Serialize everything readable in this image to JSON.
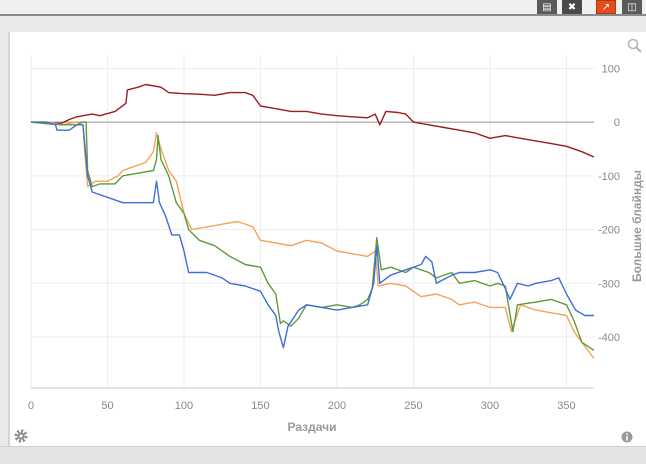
{
  "toolbar": {
    "buttons": [
      {
        "icon": "save-icon"
      },
      {
        "icon": "close-icon"
      },
      {
        "icon": "chart-icon",
        "active": true
      },
      {
        "icon": "panel-icon"
      }
    ]
  },
  "colors": {
    "red": "#9b1b1e",
    "orange": "#f3a35a",
    "green": "#5f9a3b",
    "blue": "#3f6fd6",
    "zero_line": "#aaaaaa",
    "grid": "#eeeeee",
    "active_button": "#e04e1a"
  },
  "chart_data": {
    "type": "line",
    "title": "",
    "xlabel": "Раздачи",
    "ylabel": "Большие блайнды",
    "xlim": [
      0,
      368
    ],
    "ylim": [
      -495,
      125
    ],
    "x_ticks": [
      0,
      50,
      100,
      150,
      200,
      250,
      300,
      350
    ],
    "y_ticks": [
      100,
      0,
      -100,
      -200,
      -300,
      -400
    ],
    "grid": true,
    "series": [
      {
        "key": "red",
        "points": [
          [
            0,
            0
          ],
          [
            10,
            -2
          ],
          [
            20,
            -2
          ],
          [
            25,
            5
          ],
          [
            30,
            10
          ],
          [
            40,
            15
          ],
          [
            45,
            12
          ],
          [
            55,
            20
          ],
          [
            62,
            35
          ],
          [
            63,
            60
          ],
          [
            70,
            65
          ],
          [
            75,
            70
          ],
          [
            85,
            65
          ],
          [
            90,
            55
          ],
          [
            100,
            53
          ],
          [
            110,
            52
          ],
          [
            120,
            50
          ],
          [
            130,
            55
          ],
          [
            140,
            55
          ],
          [
            145,
            50
          ],
          [
            150,
            30
          ],
          [
            160,
            25
          ],
          [
            170,
            20
          ],
          [
            180,
            20
          ],
          [
            190,
            15
          ],
          [
            200,
            12
          ],
          [
            210,
            10
          ],
          [
            220,
            8
          ],
          [
            225,
            15
          ],
          [
            228,
            -5
          ],
          [
            232,
            20
          ],
          [
            240,
            18
          ],
          [
            245,
            15
          ],
          [
            250,
            0
          ],
          [
            260,
            -5
          ],
          [
            270,
            -10
          ],
          [
            280,
            -15
          ],
          [
            290,
            -20
          ],
          [
            300,
            -30
          ],
          [
            310,
            -25
          ],
          [
            320,
            -30
          ],
          [
            330,
            -35
          ],
          [
            340,
            -40
          ],
          [
            350,
            -45
          ],
          [
            360,
            -55
          ],
          [
            368,
            -65
          ]
        ]
      },
      {
        "key": "orange",
        "points": [
          [
            0,
            0
          ],
          [
            10,
            0
          ],
          [
            20,
            -5
          ],
          [
            30,
            0
          ],
          [
            34,
            -5
          ],
          [
            35,
            -50
          ],
          [
            37,
            -120
          ],
          [
            42,
            -110
          ],
          [
            50,
            -110
          ],
          [
            57,
            -100
          ],
          [
            60,
            -90
          ],
          [
            65,
            -85
          ],
          [
            75,
            -75
          ],
          [
            80,
            -55
          ],
          [
            82,
            -20
          ],
          [
            85,
            -50
          ],
          [
            90,
            -90
          ],
          [
            95,
            -110
          ],
          [
            100,
            -170
          ],
          [
            105,
            -200
          ],
          [
            115,
            -195
          ],
          [
            125,
            -190
          ],
          [
            135,
            -185
          ],
          [
            145,
            -195
          ],
          [
            150,
            -220
          ],
          [
            160,
            -225
          ],
          [
            170,
            -230
          ],
          [
            180,
            -220
          ],
          [
            190,
            -225
          ],
          [
            200,
            -240
          ],
          [
            210,
            -245
          ],
          [
            220,
            -250
          ],
          [
            225,
            -240
          ],
          [
            227,
            -305
          ],
          [
            235,
            -300
          ],
          [
            245,
            -305
          ],
          [
            255,
            -325
          ],
          [
            265,
            -320
          ],
          [
            275,
            -330
          ],
          [
            280,
            -340
          ],
          [
            290,
            -335
          ],
          [
            300,
            -345
          ],
          [
            310,
            -345
          ],
          [
            314,
            -390
          ],
          [
            320,
            -340
          ],
          [
            330,
            -350
          ],
          [
            340,
            -355
          ],
          [
            350,
            -360
          ],
          [
            355,
            -390
          ],
          [
            360,
            -410
          ],
          [
            368,
            -440
          ]
        ]
      },
      {
        "key": "green",
        "points": [
          [
            0,
            0
          ],
          [
            10,
            -3
          ],
          [
            20,
            -5
          ],
          [
            30,
            -5
          ],
          [
            33,
            0
          ],
          [
            36,
            0
          ],
          [
            37,
            -90
          ],
          [
            40,
            -120
          ],
          [
            45,
            -115
          ],
          [
            55,
            -115
          ],
          [
            60,
            -100
          ],
          [
            70,
            -95
          ],
          [
            80,
            -90
          ],
          [
            82,
            -70
          ],
          [
            83,
            -25
          ],
          [
            85,
            -70
          ],
          [
            90,
            -100
          ],
          [
            95,
            -150
          ],
          [
            100,
            -170
          ],
          [
            103,
            -200
          ],
          [
            110,
            -220
          ],
          [
            120,
            -230
          ],
          [
            130,
            -250
          ],
          [
            140,
            -265
          ],
          [
            150,
            -270
          ],
          [
            155,
            -300
          ],
          [
            160,
            -320
          ],
          [
            163,
            -375
          ],
          [
            165,
            -370
          ],
          [
            170,
            -380
          ],
          [
            175,
            -365
          ],
          [
            180,
            -340
          ],
          [
            190,
            -345
          ],
          [
            200,
            -340
          ],
          [
            210,
            -345
          ],
          [
            215,
            -340
          ],
          [
            220,
            -330
          ],
          [
            223,
            -310
          ],
          [
            226,
            -215
          ],
          [
            229,
            -275
          ],
          [
            235,
            -270
          ],
          [
            245,
            -280
          ],
          [
            250,
            -270
          ],
          [
            260,
            -280
          ],
          [
            265,
            -290
          ],
          [
            275,
            -280
          ],
          [
            280,
            -300
          ],
          [
            290,
            -295
          ],
          [
            300,
            -305
          ],
          [
            305,
            -300
          ],
          [
            310,
            -305
          ],
          [
            315,
            -390
          ],
          [
            318,
            -340
          ],
          [
            330,
            -335
          ],
          [
            340,
            -330
          ],
          [
            350,
            -340
          ],
          [
            355,
            -370
          ],
          [
            360,
            -410
          ],
          [
            368,
            -425
          ]
        ]
      },
      {
        "key": "blue",
        "points": [
          [
            0,
            0
          ],
          [
            10,
            0
          ],
          [
            16,
            -5
          ],
          [
            17,
            -15
          ],
          [
            25,
            -15
          ],
          [
            30,
            -5
          ],
          [
            34,
            -5
          ],
          [
            37,
            -100
          ],
          [
            40,
            -130
          ],
          [
            50,
            -140
          ],
          [
            60,
            -150
          ],
          [
            70,
            -150
          ],
          [
            80,
            -150
          ],
          [
            82,
            -110
          ],
          [
            84,
            -150
          ],
          [
            88,
            -175
          ],
          [
            92,
            -210
          ],
          [
            97,
            -210
          ],
          [
            100,
            -240
          ],
          [
            103,
            -280
          ],
          [
            115,
            -280
          ],
          [
            125,
            -290
          ],
          [
            130,
            -300
          ],
          [
            140,
            -305
          ],
          [
            150,
            -315
          ],
          [
            155,
            -340
          ],
          [
            160,
            -360
          ],
          [
            162,
            -390
          ],
          [
            165,
            -420
          ],
          [
            168,
            -380
          ],
          [
            175,
            -350
          ],
          [
            180,
            -340
          ],
          [
            190,
            -345
          ],
          [
            200,
            -350
          ],
          [
            210,
            -345
          ],
          [
            220,
            -340
          ],
          [
            224,
            -300
          ],
          [
            226,
            -230
          ],
          [
            228,
            -300
          ],
          [
            235,
            -285
          ],
          [
            245,
            -275
          ],
          [
            255,
            -265
          ],
          [
            258,
            -250
          ],
          [
            262,
            -260
          ],
          [
            265,
            -300
          ],
          [
            275,
            -285
          ],
          [
            280,
            -280
          ],
          [
            290,
            -280
          ],
          [
            300,
            -275
          ],
          [
            305,
            -280
          ],
          [
            310,
            -310
          ],
          [
            313,
            -330
          ],
          [
            318,
            -300
          ],
          [
            325,
            -305
          ],
          [
            330,
            -300
          ],
          [
            340,
            -295
          ],
          [
            345,
            -290
          ],
          [
            350,
            -320
          ],
          [
            356,
            -350
          ],
          [
            362,
            -360
          ],
          [
            368,
            -360
          ]
        ]
      }
    ]
  }
}
